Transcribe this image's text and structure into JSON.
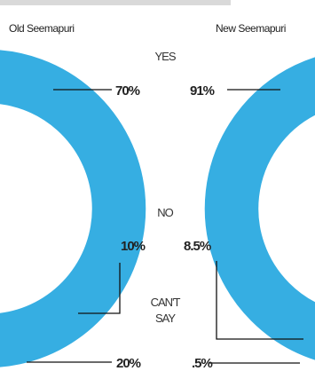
{
  "chart_data": [
    {
      "type": "pie",
      "title": "Old Seemapuri",
      "categories": [
        "YES",
        "NO",
        "CAN'T SAY"
      ],
      "values": [
        70,
        10,
        20
      ],
      "value_labels": [
        "70%",
        "10%",
        "20%"
      ]
    },
    {
      "type": "pie",
      "title": "New Seemapuri",
      "categories": [
        "YES",
        "NO",
        "CAN'T SAY"
      ],
      "values": [
        91,
        8.5,
        0.5
      ],
      "value_labels": [
        "91%",
        "8.5%",
        ".5%"
      ]
    }
  ],
  "legend": {
    "yes_label": "YES",
    "no_label": "NO",
    "cant_say_line1": "CAN'T",
    "cant_say_line2": "SAY"
  },
  "colors": {
    "yes": "#36aee2",
    "no": "#e8472b",
    "cant_say": "#5b5b5d"
  }
}
